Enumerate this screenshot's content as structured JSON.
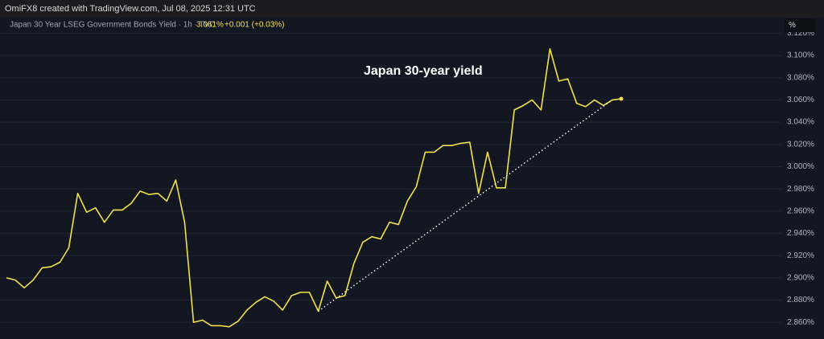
{
  "header": {
    "text": "OmiFX8 created with TradingView.com, Jul 08, 2025 12:31 UTC"
  },
  "chart_data": {
    "type": "line",
    "legend": {
      "name": "Japan 30 Year LSEG Government Bonds Yield · 1h · TVC",
      "last": "3.061%",
      "change": "+0.001 (+0.03%)"
    },
    "annotation": "Japan 30-year yield",
    "unit_button": "%",
    "series": [
      {
        "name": "Japan 30 Year LSEG Government Bonds Yield",
        "color": "#f2e14c",
        "values": [
          2.9,
          2.898,
          2.891,
          2.898,
          2.909,
          2.91,
          2.914,
          2.927,
          2.976,
          2.959,
          2.963,
          2.95,
          2.961,
          2.961,
          2.967,
          2.978,
          2.975,
          2.976,
          2.969,
          2.988,
          2.95,
          2.86,
          2.862,
          2.857,
          2.857,
          2.856,
          2.861,
          2.871,
          2.878,
          2.883,
          2.879,
          2.871,
          2.884,
          2.887,
          2.887,
          2.87,
          2.897,
          2.882,
          2.884,
          2.913,
          2.932,
          2.937,
          2.935,
          2.95,
          2.948,
          2.969,
          2.982,
          3.013,
          3.013,
          3.019,
          3.019,
          3.021,
          3.022,
          2.976,
          3.013,
          2.981,
          2.981,
          3.051,
          3.055,
          3.06,
          3.051,
          3.106,
          3.077,
          3.079,
          3.057,
          3.054,
          3.06,
          3.055,
          3.06,
          3.061
        ]
      }
    ],
    "trendline": {
      "color": "#ffffff",
      "x": [
        35,
        68
      ],
      "values": [
        2.87,
        3.06
      ]
    },
    "ylim": [
      2.845,
      3.121
    ],
    "yticks": [
      {
        "value": 2.86,
        "label": "2.860%"
      },
      {
        "value": 2.88,
        "label": "2.880%"
      },
      {
        "value": 2.9,
        "label": "2.900%"
      },
      {
        "value": 2.92,
        "label": "2.920%"
      },
      {
        "value": 2.94,
        "label": "2.940%"
      },
      {
        "value": 2.96,
        "label": "2.960%"
      },
      {
        "value": 2.98,
        "label": "2.980%"
      },
      {
        "value": 3.0,
        "label": "3.000%"
      },
      {
        "value": 3.02,
        "label": "3.020%"
      },
      {
        "value": 3.04,
        "label": "3.040%"
      },
      {
        "value": 3.06,
        "label": "3.060%"
      },
      {
        "value": 3.08,
        "label": "3.080%"
      },
      {
        "value": 3.1,
        "label": "3.100%"
      },
      {
        "value": 3.12,
        "label": "3.120%"
      }
    ],
    "grid": true
  }
}
